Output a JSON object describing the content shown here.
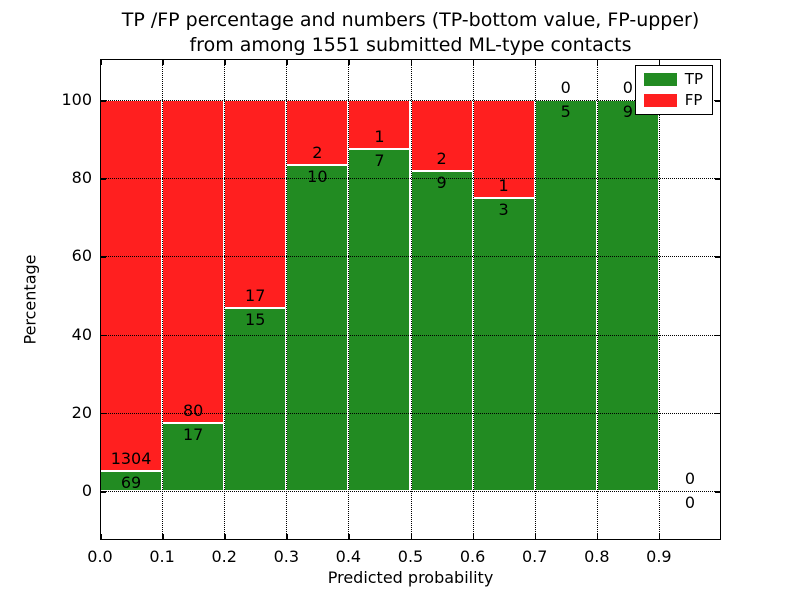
{
  "figure": {
    "title_line1": "TP /FP percentage and numbers (TP-bottom value, FP-upper)",
    "title_line2": "from among 1551 submitted ML-type contacts"
  },
  "chart_data": {
    "type": "bar",
    "stacked": true,
    "percent_normalized": true,
    "title": "TP /FP percentage and numbers (TP-bottom value, FP-upper)\nfrom among 1551 submitted ML-type contacts",
    "xlabel": "Predicted probability",
    "ylabel": "Percentage",
    "total_contacts": 1551,
    "bin_width": 0.1,
    "categories": [
      "0.0-0.1",
      "0.1-0.2",
      "0.2-0.3",
      "0.3-0.4",
      "0.4-0.5",
      "0.5-0.6",
      "0.6-0.7",
      "0.7-0.8",
      "0.8-0.9",
      "0.9-1.0"
    ],
    "series": [
      {
        "name": "TP",
        "color": "#228b22",
        "values": [
          69,
          17,
          15,
          10,
          7,
          9,
          3,
          5,
          9,
          0
        ]
      },
      {
        "name": "FP",
        "color": "#ff1f1f",
        "values": [
          1304,
          80,
          17,
          2,
          1,
          2,
          1,
          0,
          0,
          0
        ]
      }
    ],
    "tp_percent_of_bin": [
      5.0,
      17.5,
      46.9,
      83.3,
      87.5,
      81.8,
      75.0,
      100.0,
      100.0,
      0.0
    ],
    "xticks": [
      "0.0",
      "0.1",
      "0.2",
      "0.3",
      "0.4",
      "0.5",
      "0.6",
      "0.7",
      "0.8",
      "0.9"
    ],
    "yticks": [
      0,
      20,
      40,
      60,
      80,
      100
    ],
    "xlim": [
      0.0,
      1.0
    ],
    "ylim": [
      -12.5,
      110.5
    ],
    "grid": "dotted",
    "bar_edge_color": "#ffffff",
    "legend_position": "upper right",
    "legend": [
      "TP",
      "FP"
    ]
  }
}
